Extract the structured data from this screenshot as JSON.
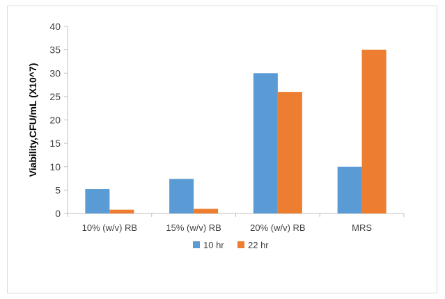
{
  "chart_data": {
    "type": "bar",
    "categories": [
      "10% (w/v) RB",
      "15% (w/v) RB",
      "20% (w/v) RB",
      "MRS"
    ],
    "series": [
      {
        "name": "10 hr",
        "values": [
          5.2,
          7.4,
          30,
          10
        ],
        "color": "#5b9bd5"
      },
      {
        "name": "22 hr",
        "values": [
          0.8,
          1.0,
          26,
          35
        ],
        "color": "#ed7d31"
      }
    ],
    "title": "",
    "xlabel": "",
    "ylabel": "Viability,CFU/mL (X10^7)",
    "ylim": [
      0,
      40
    ],
    "yticks": [
      0,
      5,
      10,
      15,
      20,
      25,
      30,
      35,
      40
    ],
    "grid": false,
    "legend_position": "bottom"
  }
}
